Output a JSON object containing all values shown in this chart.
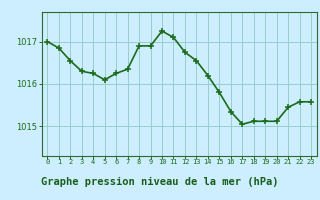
{
  "x": [
    0,
    1,
    2,
    3,
    4,
    5,
    6,
    7,
    8,
    9,
    10,
    11,
    12,
    13,
    14,
    15,
    16,
    17,
    18,
    19,
    20,
    21,
    22,
    23
  ],
  "y": [
    1017.0,
    1016.85,
    1016.55,
    1016.3,
    1016.25,
    1016.1,
    1016.25,
    1016.35,
    1016.9,
    1016.9,
    1017.25,
    1017.1,
    1016.75,
    1016.55,
    1016.2,
    1015.8,
    1015.35,
    1015.05,
    1015.12,
    1015.12,
    1015.12,
    1015.45,
    1015.58,
    1015.58
  ],
  "line_color": "#1a6b1a",
  "marker_color": "#1a6b1a",
  "bg_color": "#cceeff",
  "grid_color": "#99cccc",
  "border_color": "#336633",
  "xlabel": "Graphe pression niveau de la mer (hPa)",
  "xlabel_color": "#1a5c1a",
  "xlabel_bg": "#99cc99",
  "tick_color": "#1a6b1a",
  "yticks": [
    1015,
    1016,
    1017
  ],
  "ylim": [
    1014.3,
    1017.7
  ],
  "xlim": [
    -0.5,
    23.5
  ],
  "xticks": [
    0,
    1,
    2,
    3,
    4,
    5,
    6,
    7,
    8,
    9,
    10,
    11,
    12,
    13,
    14,
    15,
    16,
    17,
    18,
    19,
    20,
    21,
    22,
    23
  ]
}
